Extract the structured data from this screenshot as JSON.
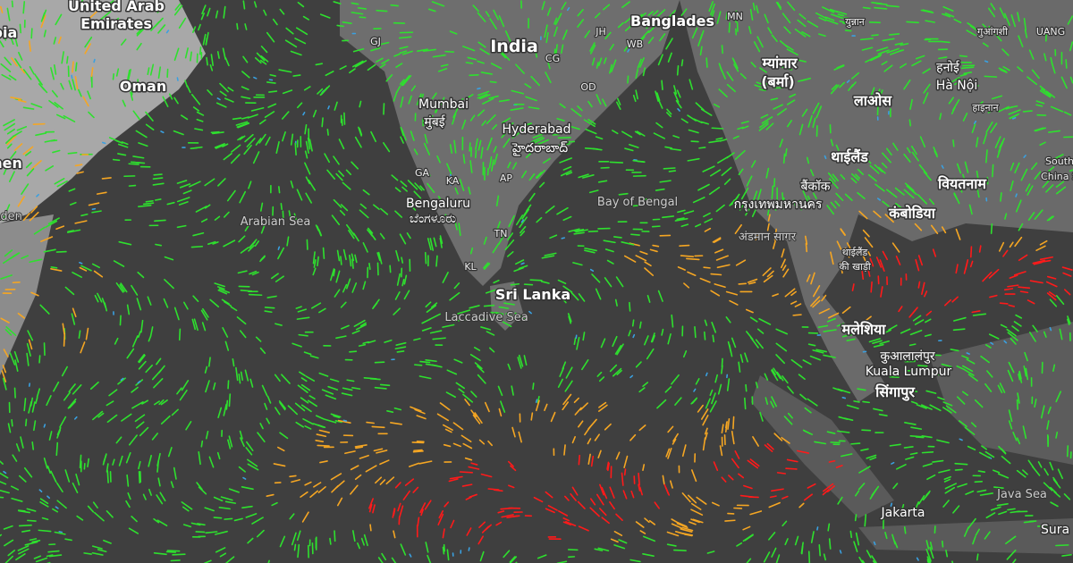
{
  "labels": [
    "United Arab",
    "Emirates",
    "abia",
    "Oman",
    "emen",
    "of Aden",
    "Arabian Sea",
    "India",
    "GJ",
    "JH",
    "WB",
    "Banglades",
    "MN",
    "CG",
    "OD",
    "Mumbai",
    "मुंबई",
    "Hyderabad",
    "హైదరాబాద్",
    "GA",
    "KA",
    "AP",
    "Bengaluru",
    "ಬೆಂಗಳೂರು",
    "TN",
    "KL",
    "Sri Lanka",
    "Laccadive Sea",
    "Bay of Bengal",
    "म्यांमार",
    "(बर्मा)",
    "युन्नान",
    "गुआंगशी",
    "UANG",
    "हनोई",
    "Hà Nội",
    "हाइनान",
    "लाओस",
    "थाईलैंड",
    "बैंकॉक",
    "กรุงเทพมหานคร",
    "वियतनाम",
    "South",
    "China S",
    "कंबोडिया",
    "अंडमान सागर",
    "थाईलैंड",
    "की खाड़ी",
    "मलेशिया",
    "कुआलालंपुर",
    "Kuala Lumpur",
    "सिंगापुर",
    "Java Sea",
    "Jakarta",
    "Sura"
  ]
}
